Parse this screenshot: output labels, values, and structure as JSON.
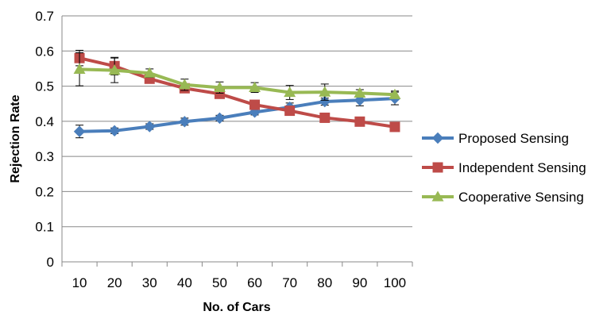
{
  "chart_data": {
    "type": "line",
    "title": "",
    "xlabel": "No. of Cars",
    "ylabel": "Rejection Rate",
    "categories": [
      "10",
      "20",
      "30",
      "40",
      "50",
      "60",
      "70",
      "80",
      "90",
      "100"
    ],
    "ylim": [
      0,
      0.7
    ],
    "yticks": [
      "0",
      "0.1",
      "0.2",
      "0.3",
      "0.4",
      "0.5",
      "0.6",
      "0.7"
    ],
    "grid": "horizontal",
    "legend_position": "right",
    "series": [
      {
        "name": "Proposed Sensing",
        "color": "#4a7ebb",
        "marker": "diamond",
        "values": [
          0.371,
          0.373,
          0.385,
          0.399,
          0.409,
          0.426,
          0.44,
          0.456,
          0.46,
          0.465
        ],
        "errors": [
          0.018,
          0.008,
          0.008,
          0.01,
          0.008,
          0.008,
          0.012,
          0.01,
          0.016,
          0.018
        ]
      },
      {
        "name": "Independent Sensing",
        "color": "#be4b48",
        "marker": "square",
        "values": [
          0.58,
          0.557,
          0.521,
          0.494,
          0.478,
          0.447,
          0.43,
          0.41,
          0.399,
          0.384
        ],
        "errors": [
          0.022,
          0.025,
          0.012,
          0.01,
          0.008,
          0.007,
          0.01,
          0.008,
          0.006,
          0.006
        ]
      },
      {
        "name": "Cooperative Sensing",
        "color": "#98b954",
        "marker": "triangle",
        "values": [
          0.548,
          0.545,
          0.537,
          0.504,
          0.496,
          0.496,
          0.482,
          0.483,
          0.48,
          0.476
        ],
        "errors": [
          0.047,
          0.035,
          0.012,
          0.016,
          0.016,
          0.014,
          0.02,
          0.023,
          0.01,
          0.01
        ]
      }
    ]
  }
}
